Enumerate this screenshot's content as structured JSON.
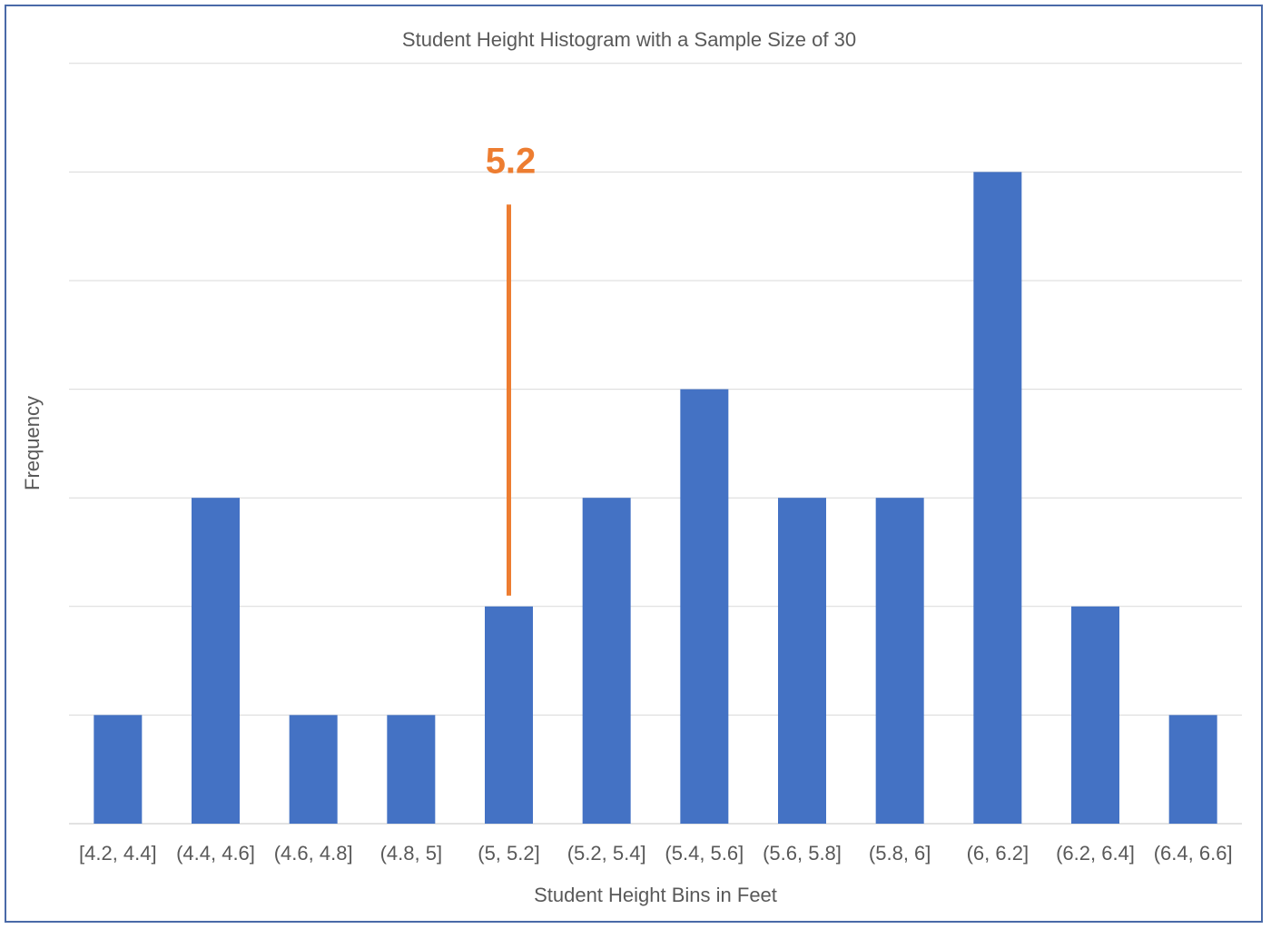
{
  "chart_data": {
    "type": "bar",
    "title": "Student Height Histogram with a Sample Size of 30",
    "xlabel": "Student Height Bins in Feet",
    "ylabel": "Frequency",
    "categories": [
      "[4.2, 4.4]",
      "(4.4, 4.6]",
      "(4.6, 4.8]",
      "(4.8, 5]",
      "(5, 5.2]",
      "(5.2, 5.4]",
      "(5.4, 5.6]",
      "(5.6, 5.8]",
      "(5.8, 6]",
      "(6, 6.2]",
      "(6.2, 6.4]",
      "(6.4, 6.6]"
    ],
    "values": [
      1,
      3,
      1,
      1,
      2,
      3,
      4,
      3,
      3,
      6,
      2,
      1
    ],
    "ylim": [
      0,
      7
    ],
    "grid": true,
    "legend": "none",
    "bar_color": "#4472c4",
    "annotation": {
      "text": "5.2",
      "x_value": 5.2,
      "category": "(5, 5.2]",
      "line_from": 2.1,
      "line_to": 5.7,
      "color": "#ed7d31"
    }
  }
}
